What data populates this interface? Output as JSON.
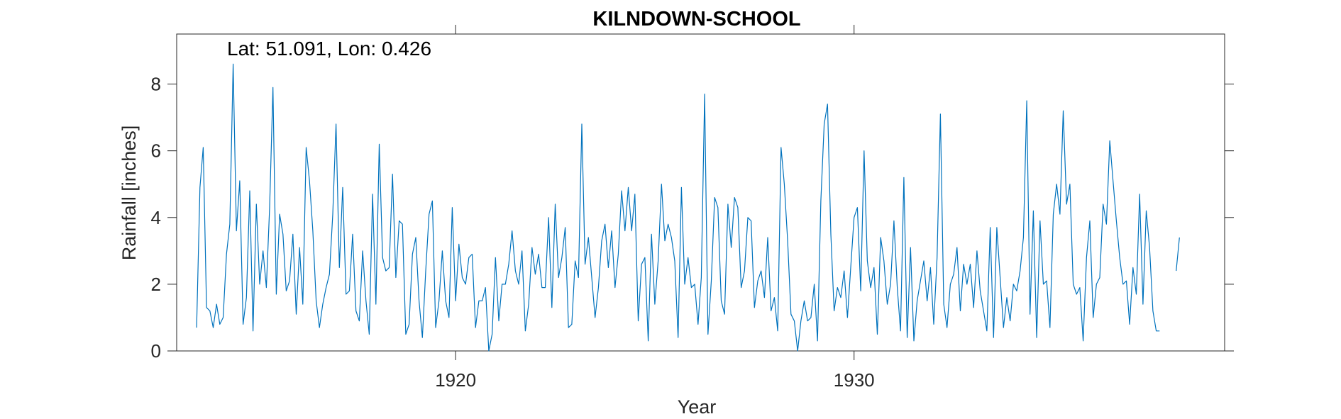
{
  "chart_data": {
    "type": "line",
    "title": "KILNDOWN-SCHOOL",
    "annotation": "Lat: 51.091, Lon: 0.426",
    "xlabel": "Year",
    "ylabel": "Rainfall [inches]",
    "xlim": [
      1913.0,
      1939.3
    ],
    "ylim": [
      0,
      9.5
    ],
    "xticks": [
      1920,
      1930
    ],
    "yticks": [
      0,
      2,
      4,
      6,
      8
    ],
    "grid": false,
    "color": "#0072BD",
    "series": [
      {
        "start": 1913.5,
        "step": 0.083333,
        "values": [
          0.7,
          4.9,
          6.1,
          1.3,
          1.2,
          0.7,
          1.4,
          0.8,
          1.0,
          2.9,
          3.8,
          8.6,
          3.6,
          5.1,
          0.8,
          1.6,
          4.8,
          0.6,
          4.4,
          2.0,
          3.0,
          1.9,
          4.3,
          7.9,
          1.7,
          4.1,
          3.5,
          1.8,
          2.1,
          3.5,
          1.1,
          3.1,
          1.4,
          6.1,
          5.1,
          3.6,
          1.5,
          0.7,
          1.4,
          1.9,
          2.3,
          4.1,
          6.8,
          2.5,
          4.9,
          1.7,
          1.8,
          3.5,
          1.2,
          0.9,
          3.0,
          1.5,
          0.5,
          4.7,
          1.4,
          6.2,
          2.8,
          2.4,
          2.5,
          5.3,
          2.2,
          3.9,
          3.8,
          0.5,
          0.8,
          2.9,
          3.4,
          1.5,
          0.4,
          2.4,
          4.1,
          4.5,
          0.7,
          1.5,
          3.0,
          1.5,
          1.0,
          4.3,
          1.5,
          3.2,
          2.2,
          2.0,
          2.8,
          2.9,
          0.7,
          1.5,
          1.5,
          1.9,
          0.0,
          0.5,
          2.8,
          0.9,
          2.0,
          2.0,
          2.6,
          3.6,
          2.4,
          2.0,
          3.0,
          0.6,
          1.4,
          3.1,
          2.3,
          2.9,
          1.9,
          1.9,
          4.0,
          1.3,
          4.4,
          2.2,
          2.8,
          3.7,
          0.7,
          0.8,
          2.7,
          2.2,
          6.8,
          2.6,
          3.4,
          2.2,
          1.0,
          1.9,
          3.3,
          3.8,
          2.5,
          3.6,
          1.9,
          2.9,
          4.8,
          3.6,
          4.9,
          3.6,
          4.7,
          0.9,
          2.6,
          2.8,
          0.3,
          3.5,
          1.4,
          2.7,
          5.0,
          3.3,
          3.8,
          3.4,
          2.7,
          0.4,
          4.9,
          2.0,
          2.8,
          1.9,
          2.0,
          0.8,
          2.2,
          7.7,
          0.5,
          2.1,
          4.6,
          4.3,
          1.5,
          1.1,
          4.4,
          3.1,
          4.6,
          4.3,
          1.9,
          2.4,
          4.0,
          3.9,
          1.3,
          2.1,
          2.4,
          1.6,
          3.4,
          1.2,
          1.6,
          0.6,
          6.1,
          5.0,
          3.3,
          1.1,
          0.9,
          0.0,
          0.9,
          1.5,
          0.9,
          1.0,
          2.0,
          0.3,
          4.5,
          6.8,
          7.4,
          3.5,
          1.2,
          1.9,
          1.6,
          2.4,
          1.0,
          2.5,
          4.0,
          4.3,
          1.8,
          6.0,
          2.7,
          1.9,
          2.5,
          0.5,
          3.4,
          2.7,
          1.4,
          2.0,
          3.9,
          1.9,
          0.6,
          5.2,
          0.4,
          3.1,
          0.3,
          1.5,
          2.1,
          2.7,
          1.5,
          2.5,
          0.8,
          2.8,
          7.1,
          1.4,
          0.7,
          2.0,
          2.3,
          3.1,
          1.2,
          2.6,
          2.0,
          2.6,
          1.3,
          3.0,
          1.8,
          1.2,
          0.6,
          3.7,
          0.4,
          3.7,
          2.2,
          0.7,
          1.6,
          0.9,
          2.0,
          1.8,
          2.4,
          3.4,
          7.5,
          1.1,
          4.2,
          0.4,
          3.9,
          2.0,
          2.1,
          0.7,
          4.1,
          5.0,
          4.1,
          7.2,
          4.4,
          5.0,
          2.0,
          1.7,
          1.9,
          0.3,
          2.8,
          3.9,
          1.0,
          2.0,
          2.2,
          4.4,
          3.8,
          6.3,
          5.1,
          3.9,
          2.8,
          2.0,
          2.1,
          0.8,
          2.5,
          1.7,
          4.7,
          1.4,
          4.2,
          3.1,
          1.2,
          0.6,
          0.6,
          null,
          null,
          null,
          null,
          2.4,
          3.4
        ]
      }
    ]
  }
}
